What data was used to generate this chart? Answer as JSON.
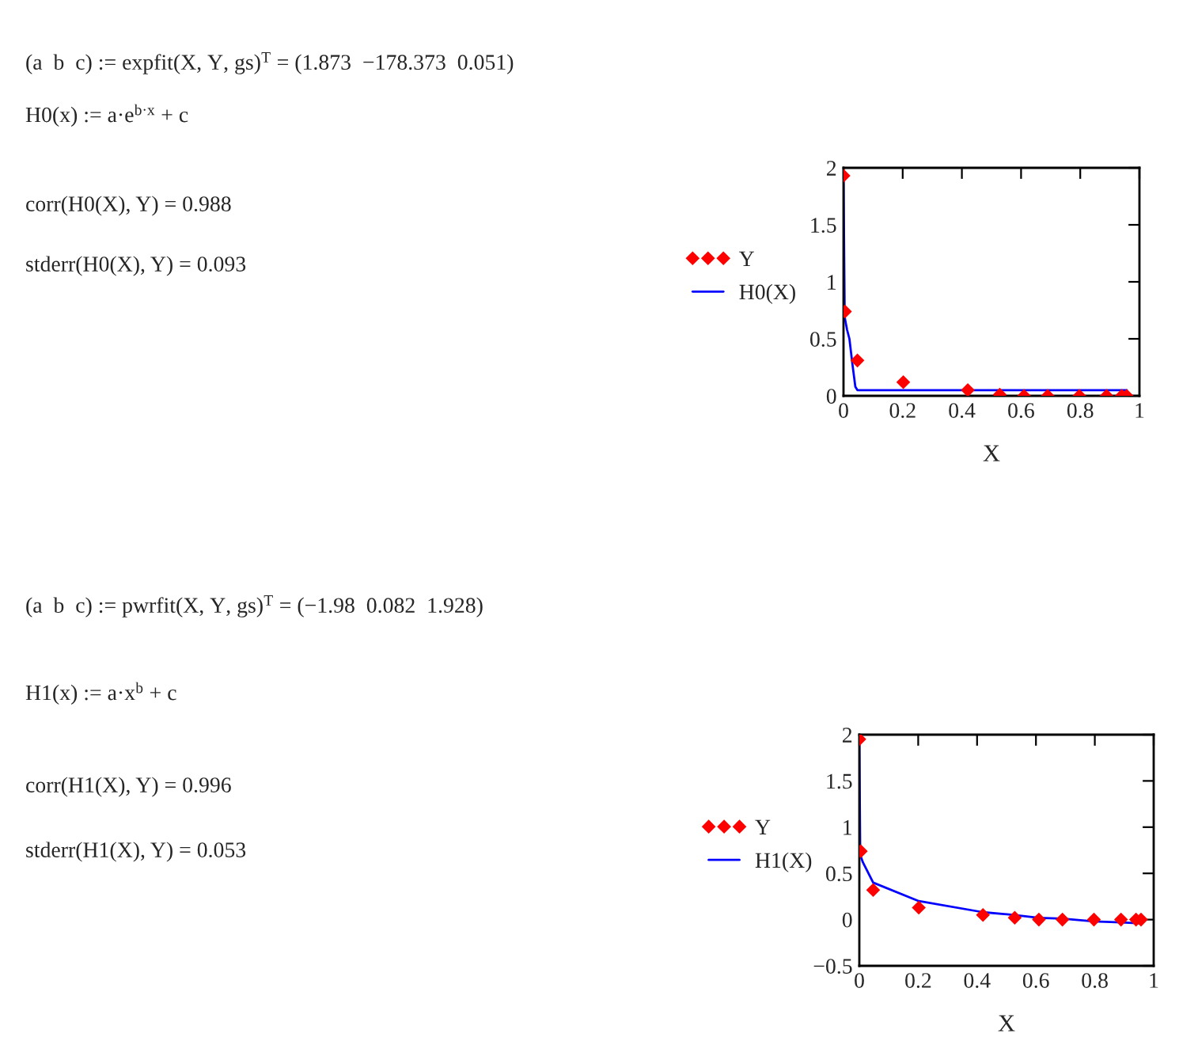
{
  "chart_data": [
    {
      "type": "scatter",
      "annotations": [
        "(a  b  c) := expfit(X, Y, gs)$^{T}$ = (1.873  −178.373  0.051)",
        "H0(x) := a·e$^{b·x}$ + c",
        "corr(H0(X), Y) = 0.988",
        "stderr(H0(X), Y) = 0.093"
      ],
      "xlabel": "X",
      "xlim": [
        0,
        1
      ],
      "ylim": [
        0,
        2
      ],
      "xticks": [
        0,
        0.2,
        0.4,
        0.6,
        0.8,
        1
      ],
      "yticks": [
        0,
        0.5,
        1,
        1.5,
        2
      ],
      "legend": "left",
      "series": [
        {
          "name": "Y",
          "color": "#ff0000",
          "marker": "diamond",
          "x": [
            0,
            0.005,
            0.047,
            0.202,
            0.42,
            0.528,
            0.61,
            0.69,
            0.797,
            0.889,
            0.94,
            0.957
          ],
          "values": [
            1.93,
            0.74,
            0.31,
            0.12,
            0.05,
            0.01,
            0,
            0,
            0,
            0,
            0,
            0
          ]
        },
        {
          "name": "H0(X)",
          "type": "line",
          "color": "#0000ff",
          "line_style": "solid",
          "x": [
            0,
            0.004,
            0.012,
            0.02,
            0.03,
            0.04,
            0.047,
            0.957
          ],
          "values": [
            1.93,
            0.69,
            0.58,
            0.5,
            0.28,
            0.08,
            0.05,
            0.05
          ]
        }
      ]
    },
    {
      "type": "scatter",
      "annotations": [
        "(a  b  c) := pwrfit(X, Y, gs)$^{T}$ = (−1.98  0.082  1.928)",
        "H1(x) := a·x$^{b}$ + c",
        "corr(H1(X), Y) = 0.996",
        "stderr(H1(X), Y) = 0.053"
      ],
      "xlabel": "X",
      "xlim": [
        0,
        1
      ],
      "ylim": [
        -0.5,
        2
      ],
      "xticks": [
        0,
        0.2,
        0.4,
        0.6,
        0.8,
        1
      ],
      "yticks": [
        {
          "value": -0.5,
          "label": "−0.5"
        },
        0,
        0.5,
        1,
        1.5,
        2
      ],
      "legend": "left",
      "series": [
        {
          "name": "Y",
          "color": "#ff0000",
          "marker": "diamond",
          "x": [
            0,
            0.005,
            0.047,
            0.202,
            0.42,
            0.528,
            0.61,
            0.69,
            0.797,
            0.889,
            0.94,
            0.957
          ],
          "values": [
            1.95,
            0.74,
            0.32,
            0.13,
            0.05,
            0.02,
            0,
            0,
            0,
            0,
            0,
            0
          ]
        },
        {
          "name": "H1(X)",
          "type": "line",
          "color": "#0000ff",
          "line_style": "solid",
          "x": [
            0,
            0.003,
            0.012,
            0.047,
            0.202,
            0.42,
            0.528,
            0.61,
            0.69,
            0.797,
            0.889,
            0.957
          ],
          "values": [
            1.95,
            0.7,
            0.62,
            0.4,
            0.2,
            0.08,
            0.05,
            0.02,
            0.01,
            -0.02,
            -0.03,
            -0.04
          ]
        }
      ]
    }
  ]
}
